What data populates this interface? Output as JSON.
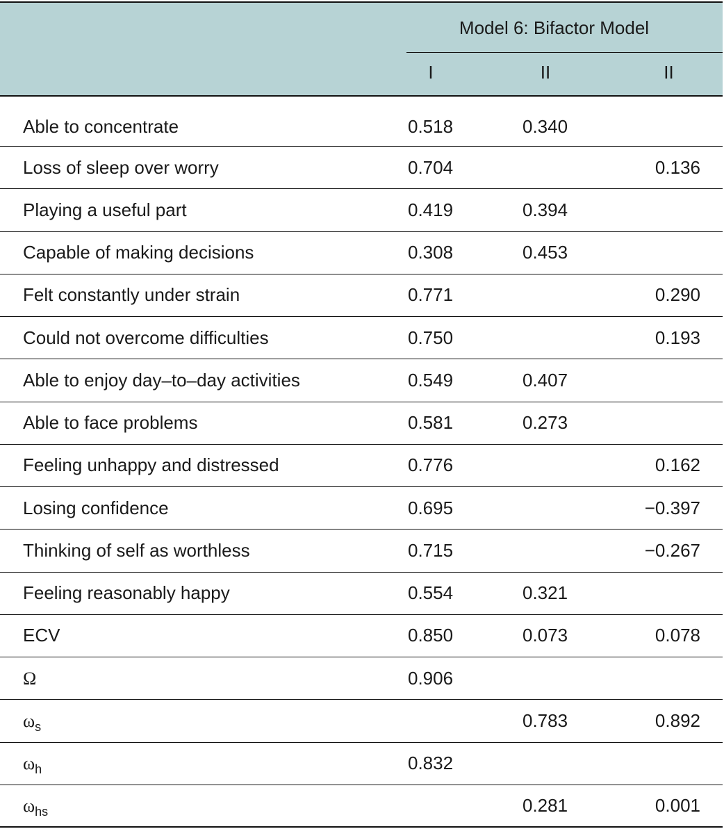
{
  "table": {
    "group_header": "Model 6: Bifactor Model",
    "columns": [
      "I",
      "II",
      "II"
    ],
    "rows": [
      [
        {
          "text": "Able to concentrate"
        },
        "0.518",
        "0.340",
        null
      ],
      [
        {
          "text": "Loss of sleep over worry"
        },
        "0.704",
        null,
        "0.136"
      ],
      [
        {
          "text": "Playing a useful part"
        },
        "0.419",
        "0.394",
        null
      ],
      [
        {
          "text": "Capable of making decisions"
        },
        "0.308",
        "0.453",
        null
      ],
      [
        {
          "text": "Felt constantly under strain"
        },
        "0.771",
        null,
        "0.290"
      ],
      [
        {
          "text": "Could not overcome difficulties"
        },
        "0.750",
        null,
        "0.193"
      ],
      [
        {
          "text": "Able to enjoy day–to–day activities"
        },
        "0.549",
        "0.407",
        null
      ],
      [
        {
          "text": "Able to face problems"
        },
        "0.581",
        "0.273",
        null
      ],
      [
        {
          "text": "Feeling unhappy and distressed"
        },
        "0.776",
        null,
        "0.162"
      ],
      [
        {
          "text": "Losing confidence"
        },
        "0.695",
        null,
        "−0.397"
      ],
      [
        {
          "text": "Thinking of self as worthless"
        },
        "0.715",
        null,
        "−0.267"
      ],
      [
        {
          "text": "Feeling reasonably happy"
        },
        "0.554",
        "0.321",
        null
      ],
      [
        {
          "text": "ECV"
        },
        "0.850",
        "0.073",
        "0.078"
      ],
      [
        {
          "text": "Ω"
        },
        "0.906",
        null,
        null
      ],
      [
        {
          "text": "ω",
          "sub": "s"
        },
        null,
        "0.783",
        "0.892"
      ],
      [
        {
          "text": "ω",
          "sub": "h"
        },
        "0.832",
        null,
        null
      ],
      [
        {
          "text": "ω",
          "sub": "hs"
        },
        null,
        "0.281",
        "0.001"
      ]
    ]
  }
}
